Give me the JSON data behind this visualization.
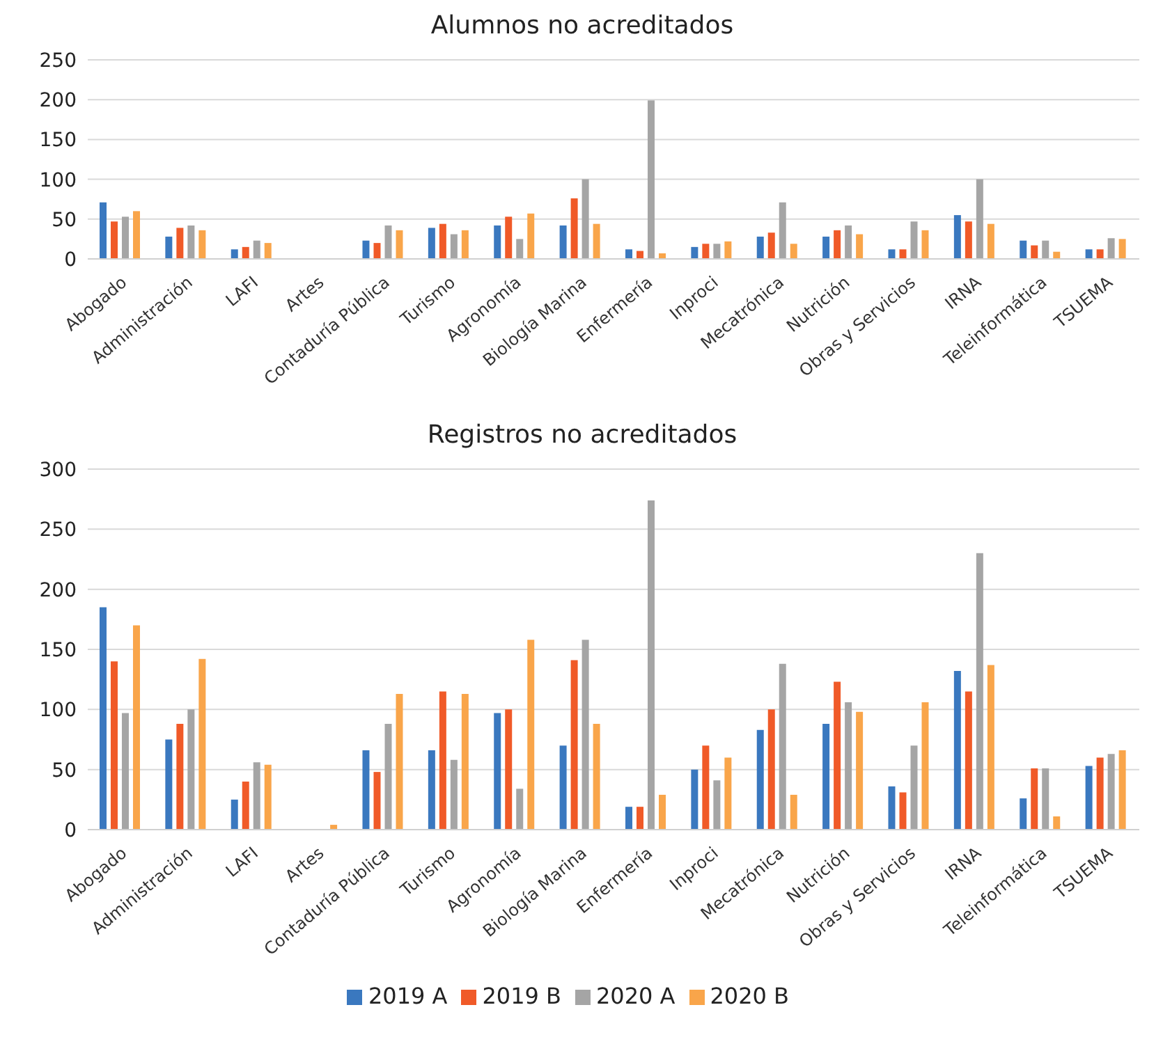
{
  "chart_data": [
    {
      "type": "bar",
      "title": "Alumnos no acreditados",
      "categories": [
        "Abogado",
        "Administración",
        "LAFI",
        "Artes",
        "Contaduría Pública",
        "Turismo",
        "Agronomía",
        "Biología Marina",
        "Enfermería",
        "Inproci",
        "Mecatrónica",
        "Nutrición",
        "Obras y Servicios",
        "IRNA",
        "Teleinformática",
        "TSUEMA"
      ],
      "series": [
        {
          "color": "#3a78bf",
          "values": [
            71,
            28,
            12,
            0,
            23,
            39,
            42,
            42,
            12,
            15,
            28,
            28,
            12,
            55,
            23,
            12
          ]
        },
        {
          "color": "#f05a28",
          "values": [
            47,
            39,
            15,
            0,
            20,
            44,
            53,
            76,
            10,
            19,
            33,
            36,
            12,
            47,
            17,
            12
          ]
        },
        {
          "color": "#a5a5a5",
          "values": [
            53,
            42,
            23,
            0,
            42,
            31,
            25,
            100,
            199,
            19,
            71,
            42,
            47,
            100,
            23,
            26
          ]
        },
        {
          "color": "#f9a54a",
          "values": [
            60,
            36,
            20,
            0,
            36,
            36,
            57,
            44,
            7,
            22,
            19,
            31,
            36,
            44,
            9,
            25
          ]
        }
      ],
      "ylim": [
        0,
        250
      ],
      "yticks": [
        0,
        50,
        100,
        150,
        200,
        250
      ],
      "grid": "y",
      "legend": false
    },
    {
      "type": "bar",
      "title": "Registros no acreditados",
      "categories": [
        "Abogado",
        "Administración",
        "LAFI",
        "Artes",
        "Contaduría Pública",
        "Turismo",
        "Agronomía",
        "Biología Marina",
        "Enfermería",
        "Inproci",
        "Mecatrónica",
        "Nutrición",
        "Obras y Servicios",
        "IRNA",
        "Teleinformática",
        "TSUEMA"
      ],
      "series": [
        {
          "name": "2019 A",
          "color": "#3a78bf",
          "values": [
            185,
            75,
            25,
            0,
            66,
            66,
            97,
            70,
            19,
            50,
            83,
            88,
            36,
            132,
            26,
            53
          ]
        },
        {
          "name": "2019 B",
          "color": "#f05a28",
          "values": [
            140,
            88,
            40,
            0,
            48,
            115,
            100,
            141,
            19,
            70,
            100,
            123,
            31,
            115,
            51,
            60
          ]
        },
        {
          "name": "2020 A",
          "color": "#a5a5a5",
          "values": [
            97,
            100,
            56,
            0,
            88,
            58,
            34,
            158,
            274,
            41,
            138,
            106,
            70,
            230,
            51,
            63
          ]
        },
        {
          "name": "2020 B",
          "color": "#f9a54a",
          "values": [
            170,
            142,
            54,
            4,
            113,
            113,
            158,
            88,
            29,
            60,
            29,
            98,
            106,
            137,
            11,
            66
          ]
        }
      ],
      "ylim": [
        0,
        300
      ],
      "yticks": [
        0,
        50,
        100,
        150,
        200,
        250,
        300
      ],
      "grid": "y",
      "legend": "bottom"
    }
  ]
}
